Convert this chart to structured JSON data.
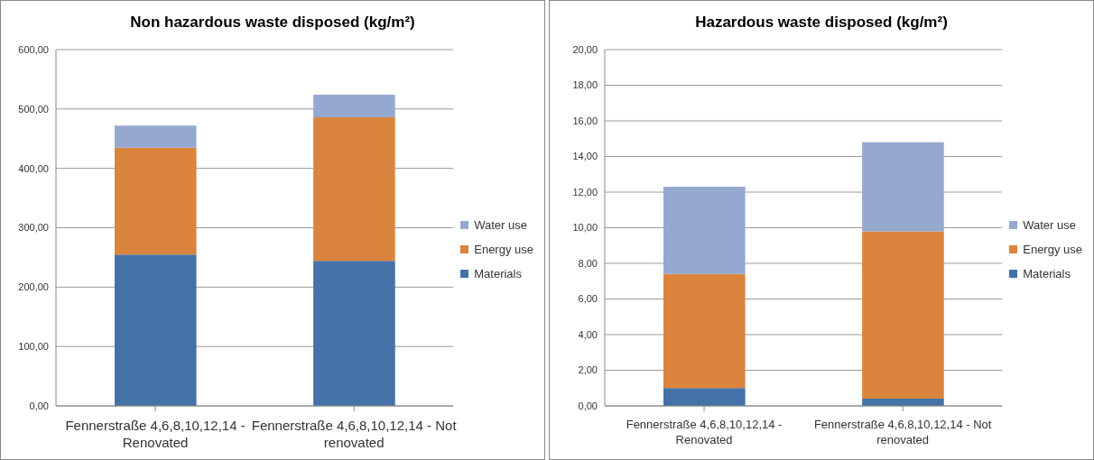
{
  "chart_data": [
    {
      "type": "bar",
      "title": "Non hazardous waste disposed (kg/m²)",
      "categories": [
        "Fennerstraße 4,6,8,10,12,14 - Renovated",
        "Fennerstraße 4,6,8,10,12,14 - Not renovated"
      ],
      "stacked": true,
      "series": [
        {
          "name": "Materials",
          "color": "#4472a8",
          "values": [
            255,
            244
          ]
        },
        {
          "name": "Energy use",
          "color": "#db843d",
          "values": [
            180,
            242
          ]
        },
        {
          "name": "Water use",
          "color": "#95a9d0",
          "values": [
            37,
            38
          ]
        }
      ],
      "ylim": [
        0,
        600
      ],
      "yticks": [
        {
          "value": 0,
          "label": "0,00"
        },
        {
          "value": 100,
          "label": "100,00"
        },
        {
          "value": 200,
          "label": "200,00"
        },
        {
          "value": 300,
          "label": "300,00"
        },
        {
          "value": 400,
          "label": "400,00"
        },
        {
          "value": 500,
          "label": "500,00"
        },
        {
          "value": 600,
          "label": "600,00"
        }
      ],
      "grid": "y",
      "legend": "right"
    },
    {
      "type": "bar",
      "title": "Hazardous waste disposed (kg/m²)",
      "categories": [
        "Fennerstraße 4,6,8,10,12,14 - Renovated",
        "Fennerstraße 4,6,8,10,12,14 - Not renovated"
      ],
      "stacked": true,
      "series": [
        {
          "name": "Materials",
          "color": "#4472a8",
          "values": [
            1.0,
            0.4
          ]
        },
        {
          "name": "Energy use",
          "color": "#db843d",
          "values": [
            6.4,
            9.4
          ]
        },
        {
          "name": "Water use",
          "color": "#95a9d0",
          "values": [
            4.9,
            5.0
          ]
        }
      ],
      "ylim": [
        0,
        20
      ],
      "yticks": [
        {
          "value": 0,
          "label": "0,00"
        },
        {
          "value": 2,
          "label": "2,00"
        },
        {
          "value": 4,
          "label": "4,00"
        },
        {
          "value": 6,
          "label": "6,00"
        },
        {
          "value": 8,
          "label": "8,00"
        },
        {
          "value": 10,
          "label": "10,00"
        },
        {
          "value": 12,
          "label": "12,00"
        },
        {
          "value": 14,
          "label": "14,00"
        },
        {
          "value": 16,
          "label": "16,00"
        },
        {
          "value": 18,
          "label": "18,00"
        },
        {
          "value": 20,
          "label": "20,00"
        }
      ],
      "grid": "y",
      "legend": "right"
    }
  ]
}
